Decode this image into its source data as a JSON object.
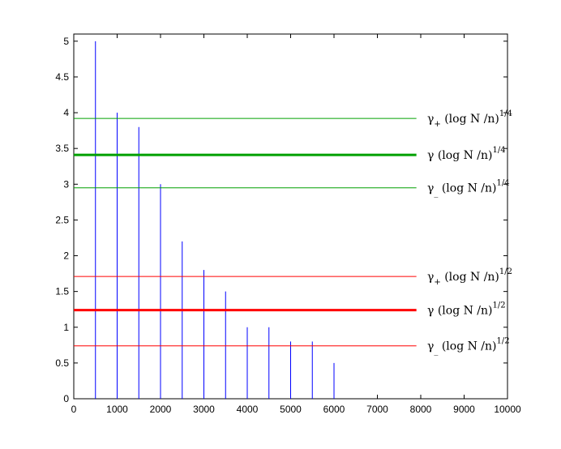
{
  "chart_data": {
    "type": "bar",
    "title": "",
    "xlabel": "",
    "ylabel": "",
    "xlim": [
      0,
      10000
    ],
    "ylim": [
      0,
      5.1
    ],
    "grid": false,
    "x_ticks": [
      "0",
      "1000",
      "2000",
      "3000",
      "4000",
      "5000",
      "6000",
      "7000",
      "8000",
      "9000",
      "10000"
    ],
    "y_ticks": [
      "0",
      "0.5",
      "1",
      "1.5",
      "2",
      "2.5",
      "3",
      "3.5",
      "4",
      "4.5",
      "5"
    ],
    "series": [
      {
        "kind": "stem",
        "color": "#0000ff",
        "x": [
          500,
          1000,
          1500,
          2000,
          2500,
          3000,
          3500,
          4000,
          4500,
          5000,
          5500,
          6000
        ],
        "values": [
          5.0,
          4.0,
          3.8,
          3.0,
          2.2,
          1.8,
          1.5,
          1.0,
          1.0,
          0.8,
          0.8,
          0.5
        ]
      }
    ],
    "reference_lines": [
      {
        "y": 3.92,
        "color": "#00a000",
        "weight": "thin",
        "gamma": "γ",
        "subscript": "+",
        "body": " (log N /n)",
        "superscript": "1/4"
      },
      {
        "y": 3.41,
        "color": "#00a000",
        "weight": "thick",
        "gamma": "γ",
        "subscript": "",
        "body": " (log N /n)",
        "superscript": "1/4"
      },
      {
        "y": 2.95,
        "color": "#00a000",
        "weight": "thin",
        "gamma": "γ",
        "subscript": "_",
        "body": " (log N /n)",
        "superscript": "1/4"
      },
      {
        "y": 1.71,
        "color": "#ff0000",
        "weight": "thin",
        "gamma": "γ",
        "subscript": "+",
        "body": " (log N /n)",
        "superscript": "1/2"
      },
      {
        "y": 1.24,
        "color": "#ff0000",
        "weight": "thick",
        "gamma": "γ",
        "subscript": "",
        "body": " (log N /n)",
        "superscript": "1/2"
      },
      {
        "y": 0.74,
        "color": "#ff0000",
        "weight": "thin",
        "gamma": "γ",
        "subscript": "_",
        "body": " (log N /n)",
        "superscript": "1/2"
      }
    ],
    "reference_line_x_end": 7900
  }
}
